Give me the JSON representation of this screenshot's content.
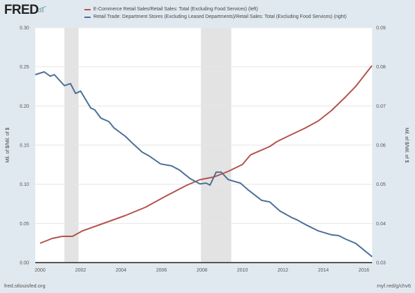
{
  "header": {
    "logo_text": "FRED"
  },
  "footer": {
    "source": "fred.stlouisfed.org",
    "short_link": "myf.red/g/chv6"
  },
  "chart_data": {
    "type": "line",
    "title": "",
    "xlabel": "",
    "ylabel_left": "Mil. of $/Mil. of $",
    "ylabel_right": "Mil. of $/Mil. of $",
    "xlim": [
      1999.76,
      2016.41
    ],
    "ylim_left": [
      0,
      0.3
    ],
    "ylim_right": [
      0.03,
      0.09
    ],
    "x_ticks": [
      2000,
      2002,
      2004,
      2006,
      2008,
      2010,
      2012,
      2014,
      2016
    ],
    "x_tick_labels": [
      "2000",
      "2002",
      "2004",
      "2006",
      "2008",
      "2010",
      "2012",
      "2014",
      "2016"
    ],
    "y_ticks_left": [
      0,
      0.05,
      0.1,
      0.15,
      0.2,
      0.25,
      0.3
    ],
    "y_tick_labels_left": [
      "0.00",
      "0.05",
      "0.10",
      "0.15",
      "0.20",
      "0.25",
      "0.30"
    ],
    "y_ticks_right": [
      0.03,
      0.04,
      0.05,
      0.06,
      0.07,
      0.08,
      0.09
    ],
    "y_tick_labels_right": [
      "0.03",
      "0.04",
      "0.05",
      "0.06",
      "0.07",
      "0.08",
      "0.09"
    ],
    "grid": true,
    "legend_position": "top",
    "recessions": [
      [
        2001.2,
        2001.9
      ],
      [
        2007.95,
        2009.45
      ]
    ],
    "series": [
      {
        "name": "E-Commerce Retail Sales/Retail Sales: Total (Excluding Food Services) (left)",
        "axis": "left",
        "color": "#b5524b",
        "x": [
          2000,
          2000.6,
          2001.1,
          2001.6,
          2002.1,
          2003.15,
          2004.2,
          2005.2,
          2006.2,
          2007.25,
          2007.9,
          2008.6,
          2009.3,
          2010.0,
          2010.4,
          2011.35,
          2011.7,
          2012.4,
          2013.05,
          2013.75,
          2014.4,
          2015.1,
          2015.6,
          2016.4
        ],
        "y": [
          0.0247,
          0.0309,
          0.0335,
          0.0335,
          0.0406,
          0.0503,
          0.06,
          0.0706,
          0.0847,
          0.0988,
          0.1059,
          0.1094,
          0.1165,
          0.1253,
          0.1376,
          0.1482,
          0.1544,
          0.1632,
          0.1711,
          0.1809,
          0.1941,
          0.2117,
          0.225,
          0.2515
        ]
      },
      {
        "name": "Retail Trade: Department Stores (Excluding Leased Departments)/Retail Sales: Total (Excluding Food Services) (right)",
        "axis": "right",
        "color": "#4d6f96",
        "x": [
          1999.76,
          2000.2,
          2000.5,
          2000.7,
          2001.2,
          2001.5,
          2001.75,
          2002.0,
          2002.5,
          2002.7,
          2003.0,
          2003.4,
          2003.65,
          2004.2,
          2004.6,
          2005.05,
          2005.4,
          2005.95,
          2006.5,
          2006.9,
          2007.4,
          2007.9,
          2008.2,
          2008.4,
          2008.7,
          2008.95,
          2009.3,
          2009.9,
          2010.3,
          2010.95,
          2011.35,
          2011.85,
          2012.4,
          2012.7,
          2013.2,
          2013.75,
          2014.4,
          2014.75,
          2015.1,
          2015.6,
          2016.41
        ],
        "y": [
          0.078,
          0.0787,
          0.0776,
          0.078,
          0.0752,
          0.0757,
          0.0732,
          0.0738,
          0.0695,
          0.069,
          0.0669,
          0.066,
          0.0644,
          0.0623,
          0.0603,
          0.0582,
          0.0572,
          0.0552,
          0.0547,
          0.0536,
          0.0515,
          0.0501,
          0.0503,
          0.0498,
          0.0531,
          0.0531,
          0.0512,
          0.0503,
          0.0485,
          0.0459,
          0.0455,
          0.0432,
          0.0416,
          0.0409,
          0.0395,
          0.0381,
          0.0371,
          0.0369,
          0.036,
          0.0349,
          0.0315
        ]
      }
    ]
  }
}
